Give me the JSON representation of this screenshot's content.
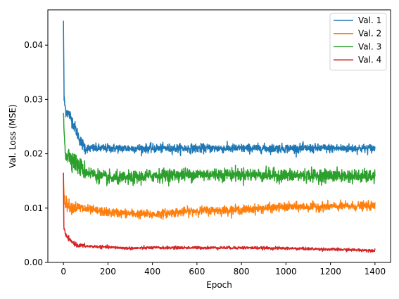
{
  "chart_data": {
    "type": "line",
    "title": "",
    "xlabel": "Epoch",
    "ylabel": "Val. Loss (MSE)",
    "xlim": [
      -70,
      1470
    ],
    "ylim": [
      0,
      0.0465
    ],
    "xticks": [
      0,
      200,
      400,
      600,
      800,
      1000,
      1200,
      1400
    ],
    "xtick_labels": [
      "0",
      "200",
      "400",
      "600",
      "800",
      "1000",
      "1200",
      "1400"
    ],
    "yticks": [
      0.0,
      0.01,
      0.02,
      0.03,
      0.04
    ],
    "ytick_labels": [
      "0.00",
      "0.01",
      "0.02",
      "0.03",
      "0.04"
    ],
    "grid": false,
    "legend_position": "top-right",
    "series": [
      {
        "name": "Val. 1",
        "color": "#1f77b4",
        "noise": 0.0004,
        "points": [
          [
            0,
            0.0445
          ],
          [
            3,
            0.03
          ],
          [
            10,
            0.028
          ],
          [
            30,
            0.027
          ],
          [
            50,
            0.025
          ],
          [
            80,
            0.022
          ],
          [
            100,
            0.021
          ],
          [
            150,
            0.021
          ],
          [
            200,
            0.021
          ],
          [
            400,
            0.021
          ],
          [
            600,
            0.021
          ],
          [
            800,
            0.021
          ],
          [
            1000,
            0.021
          ],
          [
            1200,
            0.021
          ],
          [
            1400,
            0.021
          ]
        ]
      },
      {
        "name": "Val. 2",
        "color": "#ff7f0e",
        "noise": 0.0004,
        "points": [
          [
            0,
            0.0165
          ],
          [
            3,
            0.012
          ],
          [
            10,
            0.011
          ],
          [
            30,
            0.0103
          ],
          [
            100,
            0.0098
          ],
          [
            200,
            0.0092
          ],
          [
            300,
            0.009
          ],
          [
            400,
            0.0088
          ],
          [
            500,
            0.0092
          ],
          [
            600,
            0.0095
          ],
          [
            800,
            0.0097
          ],
          [
            1000,
            0.0102
          ],
          [
            1200,
            0.0103
          ],
          [
            1400,
            0.0104
          ]
        ]
      },
      {
        "name": "Val. 3",
        "color": "#2ca02c",
        "noise": 0.0006,
        "points": [
          [
            0,
            0.0275
          ],
          [
            3,
            0.024
          ],
          [
            10,
            0.02
          ],
          [
            30,
            0.0195
          ],
          [
            60,
            0.018
          ],
          [
            100,
            0.0168
          ],
          [
            150,
            0.016
          ],
          [
            200,
            0.0155
          ],
          [
            300,
            0.0155
          ],
          [
            400,
            0.016
          ],
          [
            600,
            0.0162
          ],
          [
            800,
            0.0162
          ],
          [
            1000,
            0.016
          ],
          [
            1200,
            0.016
          ],
          [
            1400,
            0.0158
          ]
        ]
      },
      {
        "name": "Val. 4",
        "color": "#d62728",
        "noise": 0.00013,
        "points": [
          [
            0,
            0.0165
          ],
          [
            2,
            0.0065
          ],
          [
            10,
            0.005
          ],
          [
            30,
            0.004
          ],
          [
            60,
            0.0032
          ],
          [
            100,
            0.003
          ],
          [
            200,
            0.0028
          ],
          [
            300,
            0.0026
          ],
          [
            400,
            0.0027
          ],
          [
            600,
            0.0027
          ],
          [
            800,
            0.0027
          ],
          [
            1000,
            0.0026
          ],
          [
            1200,
            0.0024
          ],
          [
            1400,
            0.0022
          ]
        ]
      }
    ]
  }
}
